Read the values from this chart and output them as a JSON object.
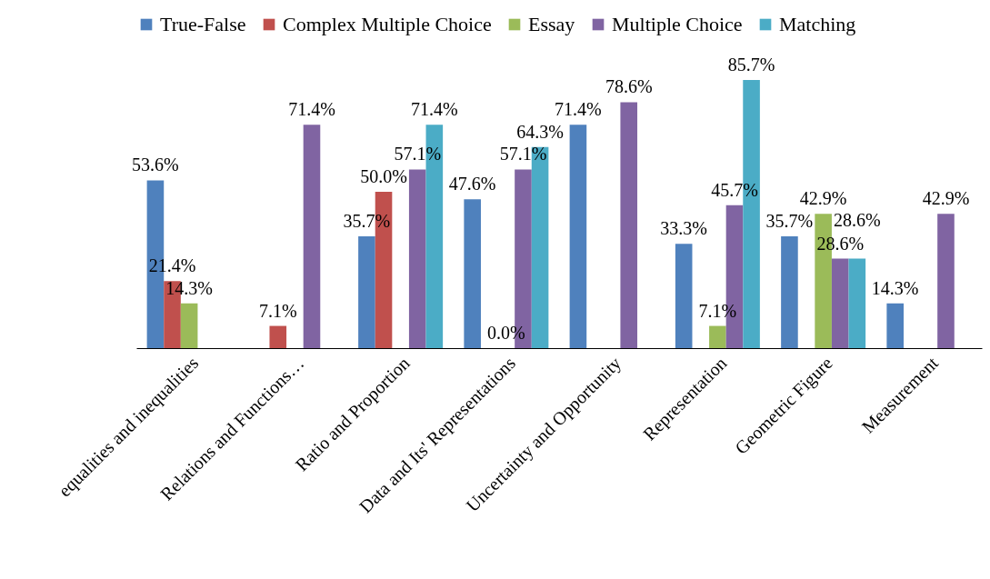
{
  "chart_data": {
    "type": "bar",
    "categories": [
      "equalities and inequalities",
      "Relations and Functions…",
      "Ratio and Proportion",
      "Data and Its' Representations",
      "Uncertainty and Opportunity",
      "Representation",
      "Geometric Figure",
      "Measurement"
    ],
    "series": [
      {
        "name": "True-False",
        "color": "#4f81bd",
        "values": [
          53.6,
          null,
          35.7,
          47.6,
          71.4,
          33.3,
          35.7,
          14.3
        ],
        "value_labels": [
          "53.6%",
          null,
          "35.7%",
          "47.6%",
          "71.4%",
          "33.3%",
          "35.7%",
          "14.3%"
        ]
      },
      {
        "name": "Complex Multiple Choice",
        "color": "#c0504d",
        "values": [
          21.4,
          7.1,
          50.0,
          null,
          null,
          null,
          null,
          null
        ],
        "value_labels": [
          "21.4%",
          "7.1%",
          "50.0%",
          null,
          null,
          null,
          null,
          null
        ]
      },
      {
        "name": "Essay",
        "color": "#9bbb59",
        "values": [
          14.3,
          null,
          null,
          0.0,
          null,
          7.1,
          42.9,
          null
        ],
        "value_labels": [
          "14.3%",
          null,
          null,
          "0.0%",
          null,
          "7.1%",
          "42.9%",
          null
        ]
      },
      {
        "name": "Multiple Choice",
        "color": "#8064a2",
        "values": [
          null,
          71.4,
          57.1,
          57.1,
          78.6,
          45.7,
          28.6,
          42.9
        ],
        "value_labels": [
          null,
          "71.4%",
          "57.1%",
          "57.1%",
          "78.6%",
          "45.7%",
          "28.6%",
          "42.9%"
        ]
      },
      {
        "name": "Matching",
        "color": "#4bacc6",
        "values": [
          null,
          null,
          71.4,
          64.3,
          null,
          85.7,
          28.6,
          null
        ],
        "value_labels": [
          null,
          null,
          "71.4%",
          "64.3%",
          null,
          "85.7%",
          "28.6%",
          null
        ]
      }
    ],
    "legend": "top",
    "grid": false,
    "tick_labels": "x"
  }
}
